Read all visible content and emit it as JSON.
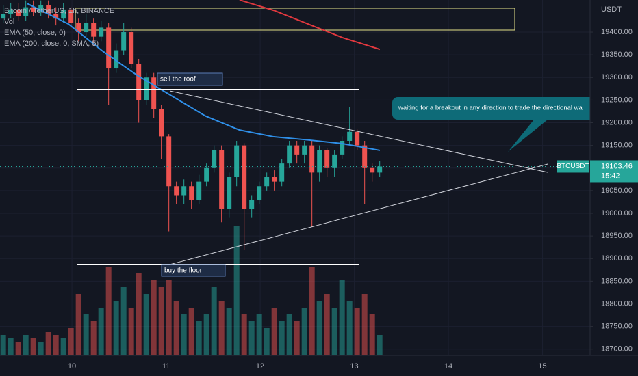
{
  "chart_data": {
    "type": "candlestick",
    "title": "Bitcoin / TetherUS, 1h, BINANCE",
    "volume_label": "Vol",
    "currency": "USDT",
    "symbol": "BTCUSDT",
    "last_price": 19103.46,
    "countdown": "15:42",
    "annotations": [
      "sell the roof",
      "buy the floor",
      "waiting for a breakout in any direction to trade the  directional wa"
    ],
    "x": [
      9.27,
      9.35,
      9.43,
      9.51,
      9.59,
      9.67,
      9.75,
      9.83,
      9.91,
      9.99,
      10.07,
      10.15,
      10.23,
      10.31,
      10.39,
      10.47,
      10.55,
      10.63,
      10.71,
      10.79,
      10.87,
      10.95,
      11.03,
      11.11,
      11.19,
      11.27,
      11.35,
      11.43,
      11.51,
      11.59,
      11.67,
      11.75,
      11.83,
      11.91,
      11.99,
      12.07,
      12.15,
      12.23,
      12.31,
      12.39,
      12.47,
      12.55,
      12.63,
      12.71,
      12.79,
      12.87,
      12.95,
      13.03,
      13.11,
      13.19,
      13.27
    ],
    "open": [
      19430,
      19440,
      19450,
      19435,
      19455,
      19445,
      19460,
      19440,
      19430,
      19450,
      19420,
      19400,
      19420,
      19390,
      19410,
      19320,
      19360,
      19400,
      19330,
      19250,
      19300,
      19230,
      19170,
      19060,
      19040,
      19060,
      19030,
      19070,
      19100,
      19140,
      19010,
      19080,
      19150,
      19010,
      19030,
      19060,
      19080,
      19070,
      19110,
      19150,
      19130,
      19150,
      19090,
      19140,
      19100,
      19130,
      19160,
      19180,
      19150,
      19100,
      19090
    ],
    "high": [
      19460,
      19465,
      19465,
      19470,
      19470,
      19470,
      19470,
      19455,
      19465,
      19455,
      19430,
      19440,
      19430,
      19425,
      19420,
      19375,
      19420,
      19410,
      19340,
      19310,
      19310,
      19240,
      19175,
      19070,
      19075,
      19070,
      19085,
      19110,
      19150,
      19150,
      19090,
      19160,
      19155,
      19040,
      19070,
      19090,
      19095,
      19120,
      19160,
      19160,
      19160,
      19160,
      19150,
      19145,
      19140,
      19170,
      19235,
      19185,
      19160,
      19110,
      19115
    ],
    "low": [
      19420,
      19430,
      19425,
      19425,
      19435,
      19435,
      19430,
      19415,
      19420,
      19410,
      19380,
      19390,
      19370,
      19380,
      19240,
      19310,
      19350,
      19320,
      19200,
      19240,
      19210,
      19120,
      18960,
      19020,
      19020,
      19010,
      19020,
      19060,
      19090,
      18980,
      18990,
      19060,
      18920,
      18990,
      19020,
      19050,
      19050,
      19060,
      19100,
      19110,
      19110,
      18970,
      19070,
      19080,
      19080,
      19120,
      19150,
      19140,
      19020,
      19070,
      19080
    ],
    "close": [
      19440,
      19450,
      19435,
      19455,
      19445,
      19460,
      19440,
      19430,
      19450,
      19420,
      19400,
      19420,
      19390,
      19410,
      19320,
      19360,
      19400,
      19330,
      19250,
      19300,
      19230,
      19170,
      19060,
      19040,
      19060,
      19030,
      19070,
      19100,
      19140,
      19010,
      19080,
      19150,
      19010,
      19030,
      19060,
      19080,
      19070,
      19110,
      19150,
      19130,
      19150,
      19090,
      19140,
      19100,
      19130,
      19160,
      19180,
      19150,
      19100,
      19090,
      19103.46
    ],
    "volume": [
      30,
      25,
      20,
      30,
      25,
      20,
      35,
      30,
      25,
      40,
      90,
      60,
      50,
      70,
      130,
      80,
      100,
      70,
      120,
      90,
      110,
      100,
      110,
      80,
      60,
      70,
      50,
      60,
      100,
      80,
      70,
      190,
      60,
      50,
      60,
      40,
      70,
      50,
      60,
      50,
      70,
      130,
      80,
      90,
      70,
      110,
      80,
      70,
      90,
      60,
      30
    ],
    "up_color": "#26a69a",
    "down_color": "#ef5350",
    "series": [
      {
        "name": "EMA (50, close, 0)",
        "color": "#2f8fe8",
        "x": [
          9.527,
          9.963,
          10.327,
          10.691,
          11.054,
          11.418,
          11.781,
          12.145,
          12.509,
          12.873,
          13.272
        ],
        "values": [
          19463,
          19418,
          19358,
          19305,
          19260,
          19215,
          19184,
          19169,
          19162,
          19154,
          19139
        ]
      },
      {
        "name": "EMA (200, close, 0, SMA, 5)",
        "color": "#e0383e",
        "x": [
          11.781,
          12.145,
          12.509,
          12.873,
          13.272
        ],
        "values": [
          19471,
          19448,
          19418,
          19388,
          19362
        ]
      }
    ],
    "xlim": [
      9.236,
      15.505
    ],
    "xticks": [
      10,
      11,
      12,
      13,
      14,
      15
    ],
    "ylim": [
      18686,
      19471
    ],
    "yticks": [
      {
        "value": 18700,
        "label": "18700.00"
      },
      {
        "value": 18750,
        "label": "18750.00"
      },
      {
        "value": 18800,
        "label": "18800.00"
      },
      {
        "value": 18850,
        "label": "18850.00"
      },
      {
        "value": 18900,
        "label": "18900.00"
      },
      {
        "value": 18950,
        "label": "18950.00"
      },
      {
        "value": 19000,
        "label": "19000.00"
      },
      {
        "value": 19050,
        "label": "19050.00"
      },
      {
        "value": 19100,
        "label": "19100.00"
      },
      {
        "value": 19150,
        "label": "19150.00"
      },
      {
        "value": 19200,
        "label": "19200.00"
      },
      {
        "value": 19250,
        "label": "19250.00"
      },
      {
        "value": 19300,
        "label": "19300.00"
      },
      {
        "value": 19350,
        "label": "19350.00"
      },
      {
        "value": 19400,
        "label": "19400.00"
      }
    ],
    "grid": true
  }
}
